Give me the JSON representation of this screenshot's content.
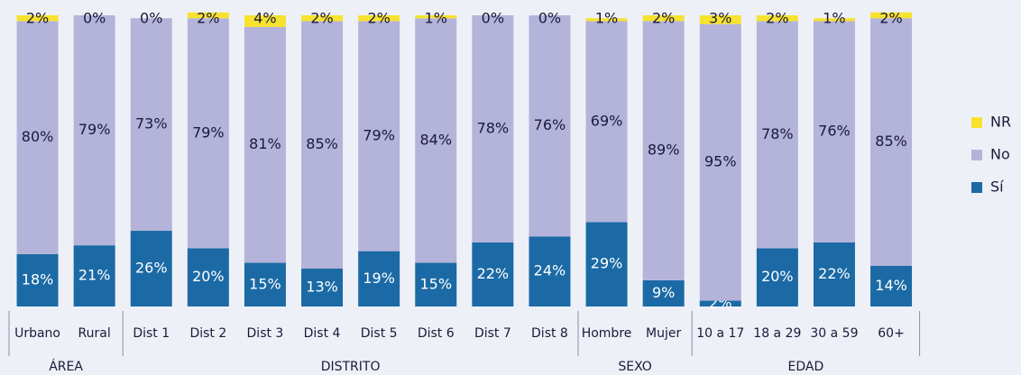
{
  "chart_data": {
    "type": "stacked_bar",
    "categories": [
      "Urbano",
      "Rural",
      "Dist 1",
      "Dist 2",
      "Dist 3",
      "Dist 4",
      "Dist 5",
      "Dist 6",
      "Dist 7",
      "Dist 8",
      "Hombre",
      "Mujer",
      "10 a 17",
      "18 a 29",
      "30 a 59",
      "60+"
    ],
    "groups": [
      {
        "label": "ÁREA",
        "count": 2
      },
      {
        "label": "DISTRITO",
        "count": 8
      },
      {
        "label": "SEXO",
        "count": 2
      },
      {
        "label": "EDAD",
        "count": 4
      }
    ],
    "series": [
      {
        "name": "Sí",
        "color": "#1b6aa5",
        "values": [
          18,
          21,
          26,
          20,
          15,
          13,
          19,
          15,
          22,
          24,
          29,
          9,
          2,
          20,
          22,
          14
        ],
        "value_labels": [
          "18%",
          "21%",
          "26%",
          "20%",
          "15%",
          "13%",
          "19%",
          "15%",
          "22%",
          "24%",
          "29%",
          "9%",
          "2%",
          "20%",
          "22%",
          "14%"
        ]
      },
      {
        "name": "No",
        "color": "#b4b3da",
        "values": [
          80,
          79,
          73,
          79,
          81,
          85,
          79,
          84,
          78,
          76,
          69,
          89,
          95,
          78,
          76,
          85
        ],
        "value_labels": [
          "80%",
          "79%",
          "73%",
          "79%",
          "81%",
          "85%",
          "79%",
          "84%",
          "78%",
          "76%",
          "69%",
          "89%",
          "95%",
          "78%",
          "76%",
          "85%"
        ]
      },
      {
        "name": "NR",
        "color": "#f7e22f",
        "values": [
          2,
          0,
          0,
          2,
          4,
          2,
          2,
          1,
          0,
          0,
          1,
          2,
          3,
          2,
          1,
          2
        ],
        "value_labels": [
          "2%",
          "0%",
          "0%",
          "2%",
          "4%",
          "2%",
          "2%",
          "1%",
          "0%",
          "0%",
          "1%",
          "2%",
          "3%",
          "2%",
          "1%",
          "2%"
        ]
      }
    ],
    "ylim": [
      0,
      100
    ]
  }
}
